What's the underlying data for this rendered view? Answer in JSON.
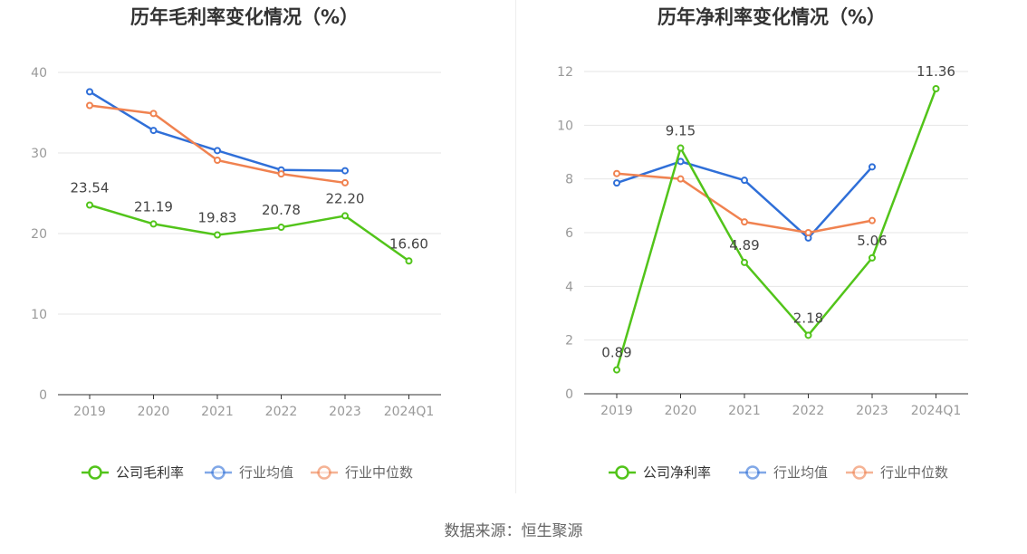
{
  "colors": {
    "company": "#52c41a",
    "industry_avg": "#2f6fd8",
    "industry_median": "#f08250",
    "axis": "#999999",
    "grid": "#e6e6e6",
    "baseline": "#333333",
    "title": "#333333",
    "label": "#444444"
  },
  "source_text": "数据来源：恒生聚源",
  "chart_data": [
    {
      "type": "line",
      "title": "历年毛利率变化情况（%）",
      "categories": [
        "2019",
        "2020",
        "2021",
        "2022",
        "2023",
        "2024Q1"
      ],
      "ylim": [
        0,
        40
      ],
      "yticks": [
        0,
        10,
        20,
        30,
        40
      ],
      "grid": true,
      "legend": "bottom-center",
      "series": [
        {
          "name": "公司毛利率",
          "key": "company",
          "values": [
            23.54,
            21.19,
            19.83,
            20.78,
            22.2,
            16.6
          ],
          "labels": [
            "23.54",
            "21.19",
            "19.83",
            "20.78",
            "22.20",
            "16.60"
          ]
        },
        {
          "name": "行业均值",
          "key": "industry_avg",
          "values": [
            37.6,
            32.8,
            30.3,
            27.9,
            27.8,
            null
          ]
        },
        {
          "name": "行业中位数",
          "key": "industry_median",
          "values": [
            35.9,
            34.9,
            29.1,
            27.4,
            26.3,
            null
          ]
        }
      ]
    },
    {
      "type": "line",
      "title": "历年净利率变化情况（%）",
      "categories": [
        "2019",
        "2020",
        "2021",
        "2022",
        "2023",
        "2024Q1"
      ],
      "ylim": [
        0,
        12
      ],
      "yticks": [
        0,
        2,
        4,
        6,
        8,
        10,
        12
      ],
      "grid": true,
      "legend": "bottom-center",
      "series": [
        {
          "name": "公司净利率",
          "key": "company",
          "values": [
            0.89,
            9.15,
            4.89,
            2.18,
            5.06,
            11.36
          ],
          "labels": [
            "0.89",
            "9.15",
            "4.89",
            "2.18",
            "5.06",
            "11.36"
          ]
        },
        {
          "name": "行业均值",
          "key": "industry_avg",
          "values": [
            7.85,
            8.65,
            7.95,
            5.8,
            8.45,
            null
          ]
        },
        {
          "name": "行业中位数",
          "key": "industry_median",
          "values": [
            8.2,
            8.0,
            6.4,
            6.0,
            6.45,
            null
          ]
        }
      ]
    }
  ]
}
